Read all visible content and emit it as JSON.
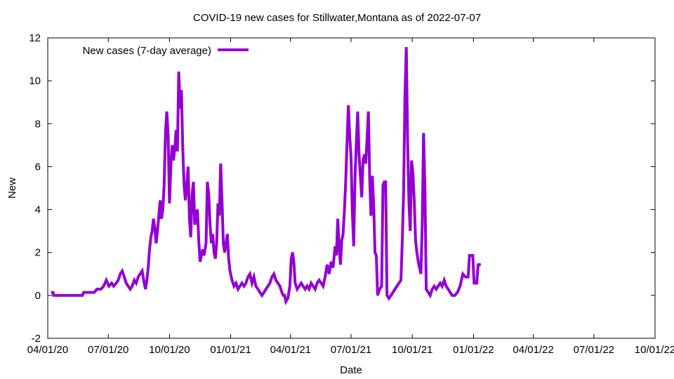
{
  "chart_data": {
    "type": "line",
    "title": "COVID-19 new cases for Stillwater,Montana as of 2022-07-07",
    "xlabel": "Date",
    "ylabel": "New",
    "xlim": [
      "2020-04-01",
      "2022-10-01"
    ],
    "ylim": [
      -2,
      12
    ],
    "x_ticks": [
      "2020-04-01",
      "2020-07-01",
      "2020-10-01",
      "2021-01-01",
      "2021-04-01",
      "2021-07-01",
      "2021-10-01",
      "2022-01-01",
      "2022-04-01",
      "2022-07-01",
      "2022-10-01"
    ],
    "x_tick_labels": [
      "04/01/20",
      "07/01/20",
      "10/01/20",
      "01/01/21",
      "04/01/21",
      "07/01/21",
      "10/01/21",
      "01/01/22",
      "04/01/22",
      "07/01/22",
      "10/01/22"
    ],
    "y_ticks": [
      -2,
      0,
      2,
      4,
      6,
      8,
      10,
      12
    ],
    "grid": false,
    "legend_position": "top-left",
    "series": [
      {
        "name": "New cases (7-day average)",
        "color": "#9400d3",
        "points": [
          [
            "2020-04-06",
            0.14
          ],
          [
            "2020-04-09",
            0.14
          ],
          [
            "2020-04-10",
            0.0
          ],
          [
            "2020-05-23",
            0.0
          ],
          [
            "2020-05-25",
            0.14
          ],
          [
            "2020-06-10",
            0.14
          ],
          [
            "2020-06-14",
            0.29
          ],
          [
            "2020-06-20",
            0.29
          ],
          [
            "2020-06-24",
            0.43
          ],
          [
            "2020-06-28",
            0.71
          ],
          [
            "2020-07-02",
            0.43
          ],
          [
            "2020-07-06",
            0.57
          ],
          [
            "2020-07-09",
            0.43
          ],
          [
            "2020-07-13",
            0.57
          ],
          [
            "2020-07-16",
            0.71
          ],
          [
            "2020-07-19",
            1.0
          ],
          [
            "2020-07-22",
            1.14
          ],
          [
            "2020-07-25",
            0.86
          ],
          [
            "2020-07-28",
            0.57
          ],
          [
            "2020-07-31",
            0.43
          ],
          [
            "2020-08-03",
            0.29
          ],
          [
            "2020-08-06",
            0.43
          ],
          [
            "2020-08-09",
            0.71
          ],
          [
            "2020-08-12",
            0.57
          ],
          [
            "2020-08-15",
            0.86
          ],
          [
            "2020-08-18",
            1.0
          ],
          [
            "2020-08-21",
            1.14
          ],
          [
            "2020-08-24",
            0.57
          ],
          [
            "2020-08-26",
            0.29
          ],
          [
            "2020-08-28",
            0.71
          ],
          [
            "2020-08-30",
            1.29
          ],
          [
            "2020-09-01",
            2.14
          ],
          [
            "2020-09-03",
            2.71
          ],
          [
            "2020-09-05",
            3.0
          ],
          [
            "2020-09-07",
            3.57
          ],
          [
            "2020-09-09",
            3.14
          ],
          [
            "2020-09-11",
            2.43
          ],
          [
            "2020-09-13",
            3.0
          ],
          [
            "2020-09-15",
            3.71
          ],
          [
            "2020-09-17",
            4.43
          ],
          [
            "2020-09-19",
            3.57
          ],
          [
            "2020-09-21",
            4.0
          ],
          [
            "2020-09-23",
            5.14
          ],
          [
            "2020-09-25",
            7.57
          ],
          [
            "2020-09-27",
            8.57
          ],
          [
            "2020-09-29",
            7.43
          ],
          [
            "2020-10-01",
            4.29
          ],
          [
            "2020-10-03",
            6.0
          ],
          [
            "2020-10-05",
            7.0
          ],
          [
            "2020-10-07",
            6.29
          ],
          [
            "2020-10-09",
            6.86
          ],
          [
            "2020-10-11",
            7.71
          ],
          [
            "2020-10-13",
            6.71
          ],
          [
            "2020-10-15",
            10.43
          ],
          [
            "2020-10-17",
            8.71
          ],
          [
            "2020-10-19",
            9.57
          ],
          [
            "2020-10-21",
            6.86
          ],
          [
            "2020-10-23",
            5.14
          ],
          [
            "2020-10-25",
            4.43
          ],
          [
            "2020-10-27",
            5.14
          ],
          [
            "2020-10-29",
            6.0
          ],
          [
            "2020-10-31",
            3.57
          ],
          [
            "2020-11-02",
            2.71
          ],
          [
            "2020-11-04",
            4.71
          ],
          [
            "2020-11-06",
            5.29
          ],
          [
            "2020-11-08",
            3.29
          ],
          [
            "2020-11-10",
            3.71
          ],
          [
            "2020-11-12",
            4.0
          ],
          [
            "2020-11-14",
            2.57
          ],
          [
            "2020-11-16",
            1.57
          ],
          [
            "2020-11-18",
            1.86
          ],
          [
            "2020-11-20",
            2.14
          ],
          [
            "2020-11-22",
            1.86
          ],
          [
            "2020-11-25",
            2.43
          ],
          [
            "2020-11-27",
            5.29
          ],
          [
            "2020-11-29",
            4.71
          ],
          [
            "2020-12-01",
            3.29
          ],
          [
            "2020-12-03",
            2.43
          ],
          [
            "2020-12-05",
            2.86
          ],
          [
            "2020-12-07",
            2.0
          ],
          [
            "2020-12-09",
            1.71
          ],
          [
            "2020-12-11",
            2.43
          ],
          [
            "2020-12-13",
            4.29
          ],
          [
            "2020-12-15",
            3.71
          ],
          [
            "2020-12-17",
            6.14
          ],
          [
            "2020-12-19",
            4.43
          ],
          [
            "2020-12-21",
            2.43
          ],
          [
            "2020-12-23",
            2.0
          ],
          [
            "2020-12-25",
            2.43
          ],
          [
            "2020-12-27",
            2.86
          ],
          [
            "2020-12-29",
            1.71
          ],
          [
            "2020-12-31",
            1.14
          ],
          [
            "2021-01-03",
            0.71
          ],
          [
            "2021-01-06",
            0.43
          ],
          [
            "2021-01-09",
            0.57
          ],
          [
            "2021-01-12",
            0.29
          ],
          [
            "2021-01-15",
            0.43
          ],
          [
            "2021-01-18",
            0.57
          ],
          [
            "2021-01-21",
            0.43
          ],
          [
            "2021-01-24",
            0.57
          ],
          [
            "2021-01-27",
            0.86
          ],
          [
            "2021-01-30",
            1.0
          ],
          [
            "2021-02-02",
            0.57
          ],
          [
            "2021-02-05",
            0.86
          ],
          [
            "2021-02-08",
            0.43
          ],
          [
            "2021-02-11",
            0.29
          ],
          [
            "2021-02-14",
            0.14
          ],
          [
            "2021-02-17",
            0.0
          ],
          [
            "2021-02-20",
            0.14
          ],
          [
            "2021-02-23",
            0.29
          ],
          [
            "2021-02-26",
            0.43
          ],
          [
            "2021-03-01",
            0.57
          ],
          [
            "2021-03-04",
            0.86
          ],
          [
            "2021-03-07",
            1.0
          ],
          [
            "2021-03-10",
            0.71
          ],
          [
            "2021-03-13",
            0.57
          ],
          [
            "2021-03-16",
            0.43
          ],
          [
            "2021-03-19",
            0.14
          ],
          [
            "2021-03-21",
            0.0
          ],
          [
            "2021-03-23",
            0.0
          ],
          [
            "2021-03-25",
            -0.29
          ],
          [
            "2021-03-28",
            -0.14
          ],
          [
            "2021-03-31",
            0.43
          ],
          [
            "2021-04-02",
            1.71
          ],
          [
            "2021-04-04",
            2.0
          ],
          [
            "2021-04-06",
            1.57
          ],
          [
            "2021-04-08",
            0.57
          ],
          [
            "2021-04-11",
            0.29
          ],
          [
            "2021-04-14",
            0.43
          ],
          [
            "2021-04-17",
            0.57
          ],
          [
            "2021-04-20",
            0.43
          ],
          [
            "2021-04-23",
            0.29
          ],
          [
            "2021-04-26",
            0.43
          ],
          [
            "2021-04-29",
            0.29
          ],
          [
            "2021-05-02",
            0.57
          ],
          [
            "2021-05-05",
            0.43
          ],
          [
            "2021-05-08",
            0.29
          ],
          [
            "2021-05-11",
            0.57
          ],
          [
            "2021-05-14",
            0.71
          ],
          [
            "2021-05-17",
            0.57
          ],
          [
            "2021-05-20",
            0.43
          ],
          [
            "2021-05-23",
            0.86
          ],
          [
            "2021-05-26",
            1.43
          ],
          [
            "2021-05-29",
            1.0
          ],
          [
            "2021-06-01",
            1.57
          ],
          [
            "2021-06-04",
            1.29
          ],
          [
            "2021-06-07",
            2.29
          ],
          [
            "2021-06-09",
            1.86
          ],
          [
            "2021-06-11",
            3.57
          ],
          [
            "2021-06-13",
            2.29
          ],
          [
            "2021-06-15",
            1.43
          ],
          [
            "2021-06-17",
            2.57
          ],
          [
            "2021-06-19",
            2.86
          ],
          [
            "2021-06-21",
            4.0
          ],
          [
            "2021-06-23",
            5.29
          ],
          [
            "2021-06-25",
            7.14
          ],
          [
            "2021-06-27",
            8.86
          ],
          [
            "2021-06-29",
            7.43
          ],
          [
            "2021-07-01",
            6.43
          ],
          [
            "2021-07-03",
            3.86
          ],
          [
            "2021-07-05",
            2.29
          ],
          [
            "2021-07-07",
            5.57
          ],
          [
            "2021-07-09",
            7.14
          ],
          [
            "2021-07-11",
            8.57
          ],
          [
            "2021-07-13",
            6.57
          ],
          [
            "2021-07-15",
            5.57
          ],
          [
            "2021-07-17",
            4.57
          ],
          [
            "2021-07-19",
            6.29
          ],
          [
            "2021-07-21",
            6.57
          ],
          [
            "2021-07-23",
            6.14
          ],
          [
            "2021-07-25",
            7.29
          ],
          [
            "2021-07-27",
            8.57
          ],
          [
            "2021-07-29",
            5.43
          ],
          [
            "2021-07-31",
            3.71
          ],
          [
            "2021-08-02",
            5.57
          ],
          [
            "2021-08-04",
            4.29
          ],
          [
            "2021-08-06",
            2.0
          ],
          [
            "2021-08-08",
            1.86
          ],
          [
            "2021-08-10",
            0.0
          ],
          [
            "2021-08-13",
            0.29
          ],
          [
            "2021-08-16",
            0.43
          ],
          [
            "2021-08-18",
            5.14
          ],
          [
            "2021-08-20",
            5.29
          ],
          [
            "2021-08-22",
            5.29
          ],
          [
            "2021-08-24",
            0.0
          ],
          [
            "2021-08-27",
            -0.14
          ],
          [
            "2021-08-30",
            0.0
          ],
          [
            "2021-09-02",
            0.14
          ],
          [
            "2021-09-05",
            0.29
          ],
          [
            "2021-09-08",
            0.43
          ],
          [
            "2021-09-11",
            0.57
          ],
          [
            "2021-09-14",
            0.71
          ],
          [
            "2021-09-16",
            2.57
          ],
          [
            "2021-09-18",
            4.86
          ],
          [
            "2021-09-20",
            9.29
          ],
          [
            "2021-09-22",
            11.57
          ],
          [
            "2021-09-24",
            7.14
          ],
          [
            "2021-09-26",
            4.29
          ],
          [
            "2021-09-28",
            3.0
          ],
          [
            "2021-09-30",
            6.29
          ],
          [
            "2021-10-02",
            5.71
          ],
          [
            "2021-10-04",
            4.43
          ],
          [
            "2021-10-06",
            2.57
          ],
          [
            "2021-10-08",
            2.0
          ],
          [
            "2021-10-10",
            1.57
          ],
          [
            "2021-10-12",
            1.29
          ],
          [
            "2021-10-14",
            1.0
          ],
          [
            "2021-10-16",
            3.29
          ],
          [
            "2021-10-18",
            7.57
          ],
          [
            "2021-10-20",
            5.0
          ],
          [
            "2021-10-22",
            0.29
          ],
          [
            "2021-10-25",
            0.14
          ],
          [
            "2021-10-28",
            0.0
          ],
          [
            "2021-10-31",
            0.29
          ],
          [
            "2021-11-03",
            0.43
          ],
          [
            "2021-11-06",
            0.29
          ],
          [
            "2021-11-09",
            0.43
          ],
          [
            "2021-11-12",
            0.57
          ],
          [
            "2021-11-15",
            0.43
          ],
          [
            "2021-11-18",
            0.71
          ],
          [
            "2021-11-21",
            0.43
          ],
          [
            "2021-11-24",
            0.29
          ],
          [
            "2021-11-27",
            0.14
          ],
          [
            "2021-11-30",
            0.0
          ],
          [
            "2021-12-04",
            0.0
          ],
          [
            "2021-12-08",
            0.14
          ],
          [
            "2021-12-12",
            0.43
          ],
          [
            "2021-12-16",
            1.0
          ],
          [
            "2021-12-20",
            0.86
          ],
          [
            "2021-12-24",
            0.86
          ],
          [
            "2021-12-26",
            1.86
          ],
          [
            "2021-12-31",
            1.86
          ],
          [
            "2022-01-02",
            0.57
          ],
          [
            "2022-01-06",
            0.57
          ],
          [
            "2022-01-08",
            1.43
          ],
          [
            "2022-01-12",
            1.43
          ]
        ]
      }
    ]
  }
}
